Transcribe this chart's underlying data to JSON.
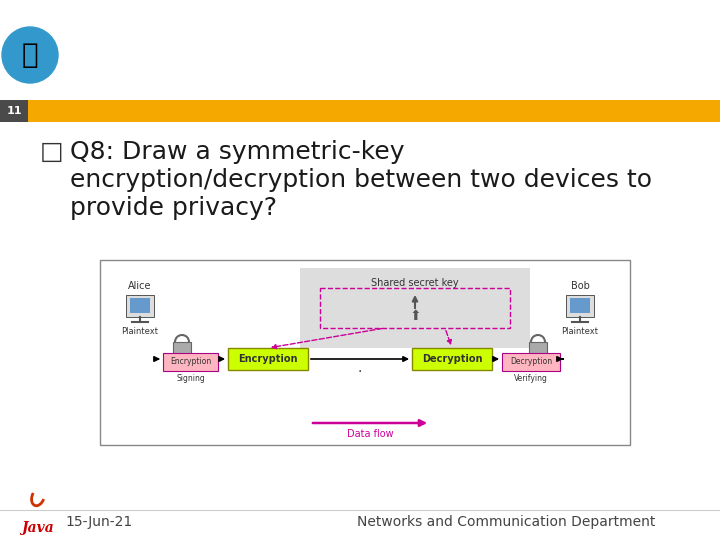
{
  "slide_number": "11",
  "slide_number_bg": "#4a4a4a",
  "header_bar_color": "#F5A800",
  "background_color": "#FFFFFF",
  "title_text_line1": "Q8: Draw a symmetric-key",
  "title_text_line2": "encryption/decryption between two devices to",
  "title_text_line3": "provide privacy?",
  "title_color": "#1A1A1A",
  "title_fontsize": 18,
  "bullet_char": "□",
  "bullet_color": "#333333",
  "date_text": "15-Jun-21",
  "footer_right_text": "Networks and Communication Department",
  "footer_color": "#444444",
  "footer_fontsize": 10,
  "alice_label": "Alice",
  "bob_label": "Bob",
  "shared_key_label": "Shared secret key",
  "encryption_label": "Encryption",
  "decryption_label": "Decryption",
  "enc_small_label": "Encryption",
  "dec_small_label": "Decryption",
  "plaintext_left": "Plaintext",
  "plaintext_right": "Plaintext",
  "signing_label": "Signing",
  "verifying_label": "Verifying",
  "data_flow_label": "Data flow",
  "enc_box_color": "#CCFF00",
  "dec_box_color": "#CCFF00",
  "enc_small_box_color": "#FFB6C1",
  "dec_small_box_color": "#FFB6C1",
  "shared_key_bg": "#CCCCCC",
  "shared_key_box_color": "#FFFFFF",
  "shared_key_border": "#CC0099",
  "arrow_color": "#000000",
  "data_arrow_color": "#CC0099",
  "dashed_arrow_color": "#CC0099",
  "diagram_bg": "#FFFFFF",
  "diagram_border": "#888888"
}
